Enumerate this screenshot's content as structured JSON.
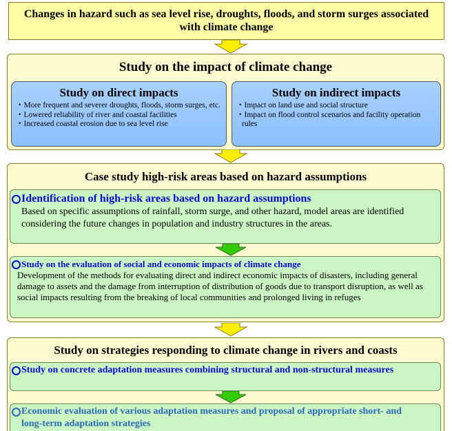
{
  "header": {
    "text": "Changes in hazard such as sea level rise, droughts, floods, and storm surges associated with climate change"
  },
  "impact": {
    "title": "Study on the impact of climate change",
    "direct": {
      "title": "Study on direct impacts",
      "items": [
        "・More frequent and severer droughts, floods, storm surges, etc.",
        "・Lowered reliability of river and coastal facilities",
        "・Increased coastal erosion due to sea level rise"
      ]
    },
    "indirect": {
      "title": "Study on indirect impacts",
      "items": [
        "・Impact on land use and social structure",
        "・Impact on flood control scenarios and facility operation rules"
      ]
    }
  },
  "case_study": {
    "title": "Case study high-risk areas based on hazard assumptions",
    "identification": {
      "title": "Identification of high-risk areas based on hazard assumptions",
      "text": "Based on specific assumptions of rainfall, storm surge, and other hazard, model areas are identified considering the future changes in population and industry structures in the areas."
    },
    "evaluation": {
      "title": "Study on the evaluation of social and economic impacts of climate change",
      "text": "Development of the methods for evaluating direct and indirect economic impacts of disasters, including general damage to assets and the damage from interruption of distribution of goods due to transport disruption, as well as social impacts resulting from the breaking of local communities and prolonged living in refuges"
    }
  },
  "strategies": {
    "title": "Study on strategies responding to climate change in rivers and coasts",
    "measures": {
      "title": "Study on concrete adaptation measures combining structural and non-structural measures"
    },
    "economic": {
      "title": "Economic evaluation of various adaptation measures and proposal of appropriate short- and long-term adaptation strategies"
    }
  }
}
